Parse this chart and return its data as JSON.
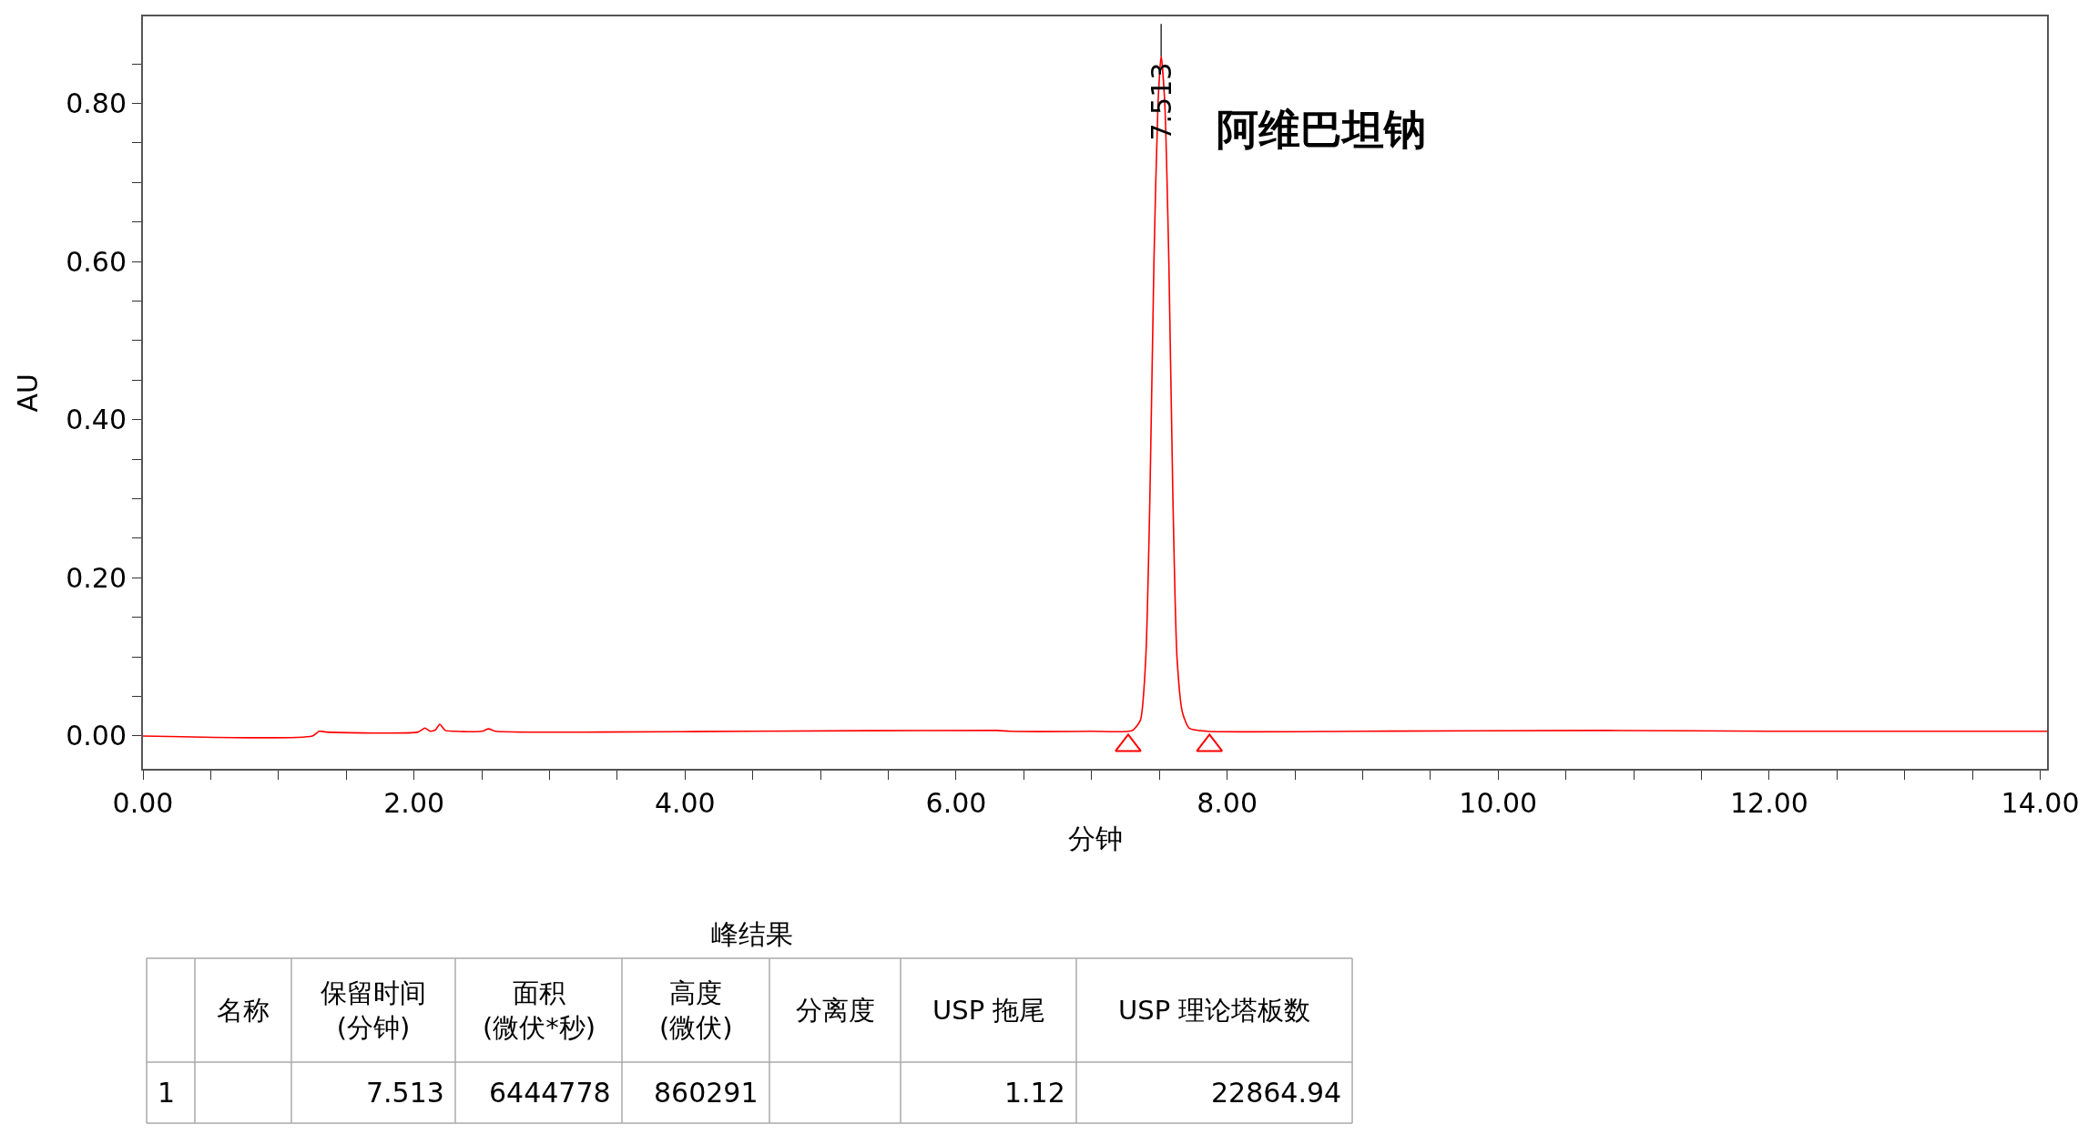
{
  "chart_data": {
    "type": "line",
    "xlabel": "分钟",
    "ylabel": "AU",
    "xlim": [
      0,
      14.05
    ],
    "ylim": [
      -0.042,
      0.91
    ],
    "xticks": [
      {
        "value": 0,
        "label": "0.00"
      },
      {
        "value": 0.5,
        "label": null
      },
      {
        "value": 1,
        "label": null
      },
      {
        "value": 1.5,
        "label": null
      },
      {
        "value": 2,
        "label": "2.00"
      },
      {
        "value": 2.5,
        "label": null
      },
      {
        "value": 3,
        "label": null
      },
      {
        "value": 3.5,
        "label": null
      },
      {
        "value": 4,
        "label": "4.00"
      },
      {
        "value": 4.5,
        "label": null
      },
      {
        "value": 5,
        "label": null
      },
      {
        "value": 5.5,
        "label": null
      },
      {
        "value": 6,
        "label": "6.00"
      },
      {
        "value": 6.5,
        "label": null
      },
      {
        "value": 7,
        "label": null
      },
      {
        "value": 7.5,
        "label": null
      },
      {
        "value": 8,
        "label": "8.00"
      },
      {
        "value": 8.5,
        "label": null
      },
      {
        "value": 9,
        "label": null
      },
      {
        "value": 9.5,
        "label": null
      },
      {
        "value": 10,
        "label": "10.00"
      },
      {
        "value": 10.5,
        "label": null
      },
      {
        "value": 11,
        "label": null
      },
      {
        "value": 11.5,
        "label": null
      },
      {
        "value": 12,
        "label": "12.00"
      },
      {
        "value": 12.5,
        "label": null
      },
      {
        "value": 13,
        "label": null
      },
      {
        "value": 13.5,
        "label": null
      },
      {
        "value": 14,
        "label": "14.00"
      }
    ],
    "yticks": [
      {
        "value": 0,
        "label": "0.00"
      },
      {
        "value": 0.05,
        "label": null
      },
      {
        "value": 0.1,
        "label": null
      },
      {
        "value": 0.15,
        "label": null
      },
      {
        "value": 0.2,
        "label": "0.20"
      },
      {
        "value": 0.25,
        "label": null
      },
      {
        "value": 0.3,
        "label": null
      },
      {
        "value": 0.35,
        "label": null
      },
      {
        "value": 0.4,
        "label": "0.40"
      },
      {
        "value": 0.45,
        "label": null
      },
      {
        "value": 0.5,
        "label": null
      },
      {
        "value": 0.55,
        "label": null
      },
      {
        "value": 0.6,
        "label": "0.60"
      },
      {
        "value": 0.65,
        "label": null
      },
      {
        "value": 0.7,
        "label": null
      },
      {
        "value": 0.75,
        "label": null
      },
      {
        "value": 0.8,
        "label": "0.80"
      },
      {
        "value": 0.85,
        "label": null
      }
    ],
    "series": [
      {
        "color": "#ff0000",
        "x": [
          0,
          1.25,
          1.3,
          1.35,
          2.03,
          2.08,
          2.12,
          2.16,
          2.19,
          2.23,
          2.3,
          2.5,
          2.55,
          2.6,
          3.4,
          4.5,
          6.3,
          6.4,
          7.0,
          7.3,
          7.36,
          7.4,
          7.43,
          7.46,
          7.49,
          7.513,
          7.54,
          7.57,
          7.6,
          7.63,
          7.67,
          7.72,
          7.85,
          9.0,
          10.8,
          12.0,
          14.05
        ],
        "values": [
          0.0,
          0.0,
          0.006,
          0.005,
          0.005,
          0.01,
          0.006,
          0.008,
          0.015,
          0.007,
          0.006,
          0.006,
          0.009,
          0.006,
          0.005,
          0.006,
          0.007,
          0.006,
          0.006,
          0.007,
          0.02,
          0.1,
          0.3,
          0.6,
          0.8,
          0.86,
          0.8,
          0.6,
          0.3,
          0.1,
          0.03,
          0.01,
          0.006,
          0.006,
          0.007,
          0.006,
          0.006
        ]
      },
      {
        "type": "scatter",
        "marker": "triangle",
        "color": "#ff0000",
        "x": [
          7.27,
          7.87
        ],
        "values": [
          -0.012,
          -0.012
        ]
      }
    ],
    "ref_lines": [
      {
        "axis": "x",
        "value": 7.513,
        "label": "7.513",
        "color": "#000000"
      }
    ],
    "annotations": [
      "阿维巴坦钠",
      "峰结果",
      "名称",
      "保留时间\n(分钟)",
      "面积\n(微伏*秒)",
      "高度\n(微伏)",
      "分离度",
      "USP 拖尾",
      "USP 理论塔板数",
      "1",
      "7.513",
      "6444778",
      "860291",
      "1.12",
      "22864.94"
    ]
  }
}
